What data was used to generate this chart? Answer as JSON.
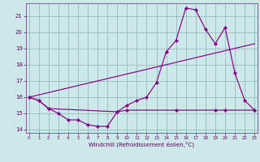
{
  "xlabel": "Windchill (Refroidissement éolien,°C)",
  "bg_color": "#cce8e8",
  "grid_color": "#99bbbb",
  "line_color": "#880088",
  "series1_x": [
    0,
    1,
    2,
    3,
    4,
    5,
    6,
    7,
    8,
    9,
    10,
    11,
    12,
    13,
    14,
    15,
    16,
    17,
    18,
    19,
    20,
    21,
    22,
    23
  ],
  "series1_y": [
    16.0,
    15.8,
    15.3,
    15.0,
    14.6,
    14.6,
    14.3,
    14.2,
    14.2,
    15.1,
    15.5,
    15.8,
    16.0,
    16.9,
    18.8,
    19.5,
    21.5,
    21.4,
    20.2,
    19.3,
    20.3,
    17.5,
    15.8,
    15.2
  ],
  "series2_x": [
    0,
    23
  ],
  "series2_y": [
    16.0,
    19.3
  ],
  "series3_x": [
    0,
    1,
    2,
    9,
    10,
    15,
    19,
    20,
    23
  ],
  "series3_y": [
    16.0,
    15.8,
    15.3,
    15.1,
    15.2,
    15.2,
    15.2,
    15.2,
    15.2
  ],
  "ylim": [
    13.8,
    21.8
  ],
  "xlim": [
    -0.3,
    23.3
  ],
  "yticks": [
    14,
    15,
    16,
    17,
    18,
    19,
    20,
    21
  ],
  "xticks": [
    0,
    1,
    2,
    3,
    4,
    5,
    6,
    7,
    8,
    9,
    10,
    11,
    12,
    13,
    14,
    15,
    16,
    17,
    18,
    19,
    20,
    21,
    22,
    23
  ]
}
